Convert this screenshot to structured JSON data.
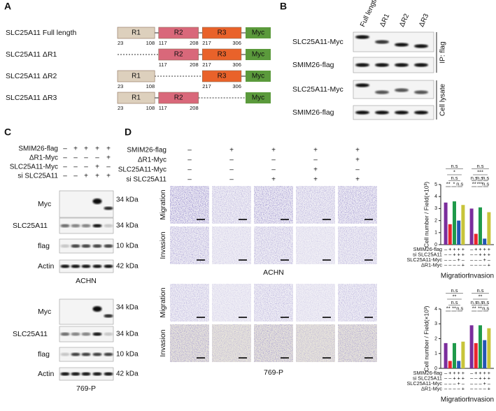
{
  "panel_a": {
    "label": "A",
    "constructs": [
      {
        "name": "SLC25A11 Full length",
        "domains": [
          {
            "label": "R1",
            "start": 23,
            "end": 108,
            "color": "#ddd0bd"
          },
          {
            "label": "R2",
            "start": 117,
            "end": 208,
            "color": "#d9687a"
          },
          {
            "label": "R3",
            "start": 217,
            "end": 306,
            "color": "#e9622a"
          }
        ],
        "tag": "Myc"
      },
      {
        "name": "SLC25A11 ΔR1",
        "domains": [
          {
            "label": "R2",
            "start": 117,
            "end": 208,
            "color": "#d9687a"
          },
          {
            "label": "R3",
            "start": 217,
            "end": 306,
            "color": "#e9622a"
          }
        ],
        "tag": "Myc"
      },
      {
        "name": "SLC25A11 ΔR2",
        "domains": [
          {
            "label": "R1",
            "start": 23,
            "end": 108,
            "color": "#ddd0bd"
          },
          {
            "label": "R3",
            "start": 217,
            "end": 306,
            "color": "#e9622a"
          }
        ],
        "tag": "Myc"
      },
      {
        "name": "SLC25A11 ΔR3",
        "domains": [
          {
            "label": "R1",
            "start": 23,
            "end": 108,
            "color": "#ddd0bd"
          },
          {
            "label": "R2",
            "start": 117,
            "end": 208,
            "color": "#d9687a"
          }
        ],
        "tag": "Myc"
      }
    ],
    "tag_color": "#5b9a3c"
  },
  "panel_b": {
    "label": "B",
    "lanes": [
      "Full length",
      "ΔR1",
      "ΔR2",
      "ΔR3"
    ],
    "rows": [
      "SLC25A11-Myc",
      "SMIM26-flag",
      "SLC25A11-Myc",
      "SMIM26-flag"
    ],
    "groups": [
      "IP: flag",
      "Cell lysate"
    ]
  },
  "panel_c": {
    "label": "C",
    "conditions": [
      {
        "label": "SMIM26-flag",
        "signs": [
          "–",
          "+",
          "+",
          "+",
          "+"
        ]
      },
      {
        "label": "ΔR1-Myc",
        "signs": [
          "–",
          "–",
          "–",
          "–",
          "+"
        ]
      },
      {
        "label": "SLC25A11-Myc",
        "signs": [
          "–",
          "–",
          "–",
          "+",
          "–"
        ]
      },
      {
        "label": "si SLC25A11",
        "signs": [
          "–",
          "–",
          "+",
          "+",
          "+"
        ]
      }
    ],
    "blots": [
      {
        "cell_line": "ACHN",
        "rows": [
          {
            "label": "Myc",
            "marker": "34 kDa"
          },
          {
            "label": "SLC25A11",
            "marker": "34 kDa"
          },
          {
            "label": "flag",
            "marker": "10 kDa"
          },
          {
            "label": "Actin",
            "marker": "42 kDa"
          }
        ]
      },
      {
        "cell_line": "769-P",
        "rows": [
          {
            "label": "Myc",
            "marker": "34 kDa"
          },
          {
            "label": "SLC25A11",
            "marker": "34 kDa"
          },
          {
            "label": "flag",
            "marker": "10 kDa"
          },
          {
            "label": "Actin",
            "marker": "42 kDa"
          }
        ]
      }
    ]
  },
  "panel_d": {
    "label": "D",
    "conditions": [
      {
        "label": "SMIM26-flag",
        "signs": [
          "–",
          "+",
          "+",
          "+",
          "+"
        ]
      },
      {
        "label": "ΔR1-Myc",
        "signs": [
          "–",
          "–",
          "–",
          "–",
          "+"
        ]
      },
      {
        "label": "SLC25A11-Myc",
        "signs": [
          "–",
          "–",
          "–",
          "+",
          "–"
        ]
      },
      {
        "label": "si SLC25A11",
        "signs": [
          "–",
          "–",
          "+",
          "+",
          "+"
        ]
      }
    ],
    "image_rows": [
      "Migration",
      "Invasion"
    ],
    "cell_lines": [
      "ACHN",
      "769-P"
    ],
    "charts": [
      {
        "type": "bar",
        "ylabel": "Cell number / Field(×10³)",
        "categories": [
          "Migration",
          "Invasion"
        ],
        "ylim": [
          0,
          5
        ],
        "yticks": [
          0,
          1,
          2,
          3,
          4,
          5
        ],
        "series": [
          {
            "color": "#7b2d9c",
            "values": [
              3.5,
              3.0
            ]
          },
          {
            "color": "#e8262e",
            "values": [
              1.7,
              0.9
            ]
          },
          {
            "color": "#1f9a4a",
            "values": [
              3.6,
              3.1
            ]
          },
          {
            "color": "#2456b4",
            "values": [
              2.0,
              0.5
            ]
          },
          {
            "color": "#c8c43a",
            "values": [
              3.3,
              2.7
            ]
          }
        ],
        "conditions": [
          {
            "label": "SMIM26-flag",
            "signs": [
              "–",
              "+",
              "+",
              "+",
              "+"
            ]
          },
          {
            "label": "si SLC25A11",
            "signs": [
              "–",
              "–",
              "+",
              "+",
              "+"
            ]
          },
          {
            "label": "SLC25A11-Myc",
            "signs": [
              "–",
              "–",
              "–",
              "+",
              "–"
            ]
          },
          {
            "label": "ΔR1-Myc",
            "signs": [
              "–",
              "–",
              "–",
              "–",
              "+"
            ]
          }
        ],
        "significance": [
          [
            [
              "n.s"
            ],
            [
              "*"
            ],
            [
              "n.s"
            ],
            [
              "**",
              "*",
              "n.s"
            ]
          ],
          [
            [
              "n.s"
            ],
            [
              "***"
            ],
            [
              "n.s",
              "n.s",
              "n.s"
            ],
            [
              "**",
              "***",
              "n.s"
            ]
          ]
        ]
      },
      {
        "type": "bar",
        "ylabel": "Cell number / Field(×10³)",
        "categories": [
          "Migration",
          "Invasion"
        ],
        "ylim": [
          0,
          4
        ],
        "yticks": [
          0,
          1,
          2,
          3,
          4
        ],
        "series": [
          {
            "color": "#7b2d9c",
            "values": [
              1.7,
              2.9
            ]
          },
          {
            "color": "#e8262e",
            "values": [
              0.5,
              1.7
            ]
          },
          {
            "color": "#1f9a4a",
            "values": [
              1.7,
              2.9
            ]
          },
          {
            "color": "#2456b4",
            "values": [
              0.5,
              1.9
            ]
          },
          {
            "color": "#c8c43a",
            "values": [
              1.8,
              2.7
            ]
          }
        ],
        "conditions": [
          {
            "label": "SMIM26-flag",
            "signs": [
              "–",
              "+",
              "+",
              "+",
              "+"
            ]
          },
          {
            "label": "si SLC25A11",
            "signs": [
              "–",
              "–",
              "+",
              "+",
              "+"
            ]
          },
          {
            "label": "SLC25A11-Myc",
            "signs": [
              "–",
              "–",
              "–",
              "+",
              "–"
            ]
          },
          {
            "label": "ΔR1-Myc",
            "signs": [
              "–",
              "–",
              "–",
              "–",
              "+"
            ]
          }
        ],
        "significance": [
          [
            [
              "n.s"
            ],
            [
              "**"
            ],
            [
              "n.s"
            ],
            [
              "**",
              "**",
              "n.s"
            ]
          ],
          [
            [
              "n.s"
            ],
            [
              "**"
            ],
            [
              "n.s",
              "n.s",
              "n.s"
            ],
            [
              "**",
              "**",
              "n.s"
            ]
          ]
        ]
      }
    ]
  }
}
